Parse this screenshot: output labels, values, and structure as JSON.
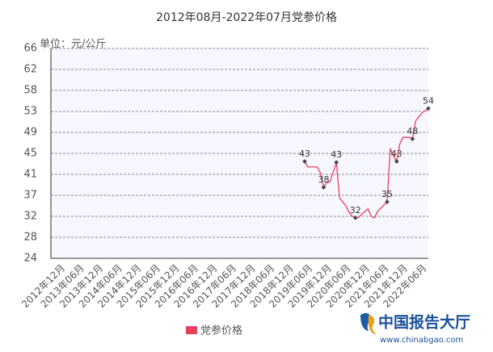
{
  "chart_data": {
    "type": "line",
    "title": "2012年08月-2022年07月党参价格",
    "y_label": "单位：元/公斤",
    "xlim": [
      "2012年08月",
      "2022年07月"
    ],
    "categories": [
      "2012年12月",
      "2013年06月",
      "2013年12月",
      "2014年06月",
      "2014年12月",
      "2015年06月",
      "2015年12月",
      "2016年06月",
      "2016年12月",
      "2017年06月",
      "2017年12月",
      "2018年06月",
      "2018年12月",
      "2019年06月",
      "2019年12月",
      "2020年06月",
      "2020年12月",
      "2021年06月",
      "2021年12月",
      "2022年06月"
    ],
    "ylim": [
      24,
      66
    ],
    "yticks": [
      24,
      {
        "value": 28.2,
        "label": "28"
      },
      {
        "value": 32.4,
        "label": "32"
      },
      {
        "value": 36.6,
        "label": "37"
      },
      {
        "value": 40.8,
        "label": "41"
      },
      45,
      {
        "value": 49.2,
        "label": "49"
      },
      {
        "value": 53.4,
        "label": "53"
      },
      {
        "value": 57.6,
        "label": "58"
      },
      {
        "value": 61.8,
        "label": "62"
      },
      66
    ],
    "grid": true,
    "series": [
      {
        "name": "党参价格",
        "color": "#e8405e",
        "x": [
          "2019年04月",
          "2019年05月",
          "2019年08月",
          "2019年09月",
          "2019年10月",
          "2019年11月",
          "2019年12月",
          "2020年02月",
          "2020年03月",
          "2020年04月",
          "2020年05月",
          "2020年06月",
          "2020年07月",
          "2020年08月",
          "2020年09月",
          "2020年11月",
          "2020年12月",
          "2021年01月",
          "2021年02月",
          "2021年03月",
          "2021年06月",
          "2021年07月",
          "2021年08月",
          "2021年09月",
          "2021年10月",
          "2021年11月",
          "2022年01月",
          "2022年02月",
          "2022年03月",
          "2022年05月",
          "2022年07月"
        ],
        "values": [
          43.4,
          42.3,
          42.3,
          41,
          38.2,
          39.2,
          39.3,
          43.2,
          36.1,
          35.3,
          34.5,
          33.2,
          32.4,
          32.1,
          32.2,
          33.4,
          33.9,
          32.4,
          32.1,
          33.4,
          35.3,
          46,
          44.5,
          43.4,
          46.9,
          48.2,
          48.2,
          47.9,
          51.5,
          53.1,
          54
        ],
        "value_labels": [
          "43",
          null,
          null,
          null,
          "38",
          null,
          null,
          "43",
          null,
          null,
          null,
          null,
          null,
          "32",
          null,
          null,
          null,
          null,
          null,
          null,
          "35",
          null,
          null,
          "43",
          null,
          null,
          null,
          "48",
          null,
          null,
          "54"
        ]
      }
    ]
  },
  "logo": {
    "name": "中国报告大厅",
    "url": "www.chinabgao.com"
  }
}
